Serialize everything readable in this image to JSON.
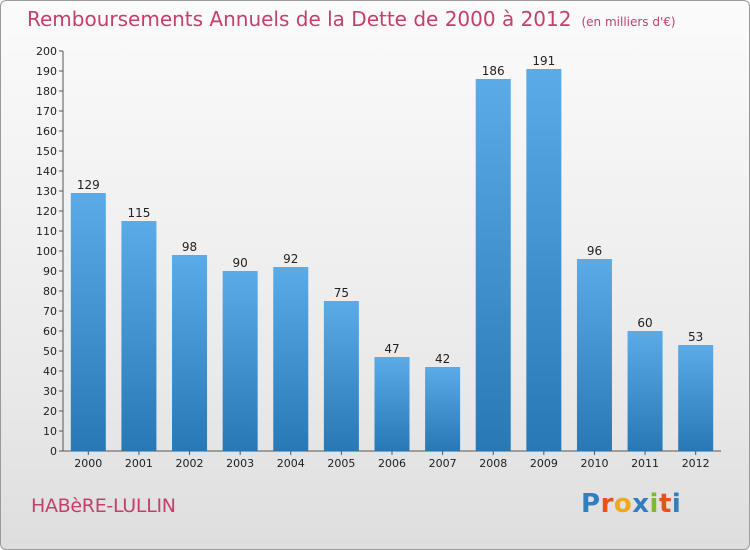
{
  "header": {
    "title": "Remboursements Annuels de la Dette de 2000 à 2012",
    "unit": "(en milliers d'€)"
  },
  "footer": {
    "commune": "HABèRE-LULLIN",
    "logo": "Proxiti",
    "logo_colors": [
      "#2f7fc1",
      "#e8501e",
      "#f2a81d",
      "#2f7fc1",
      "#7dbb2b",
      "#e8501e",
      "#2f7fc1"
    ]
  },
  "colors": {
    "bar_light": "#5aabe8",
    "bar_dark": "#2878b5",
    "text": "#222222",
    "grid_tick": "#555555",
    "title": "#c4406a"
  },
  "chart_data": {
    "type": "bar",
    "categories": [
      "2000",
      "2001",
      "2002",
      "2003",
      "2004",
      "2005",
      "2006",
      "2007",
      "2008",
      "2009",
      "2010",
      "2011",
      "2012"
    ],
    "values": [
      129,
      115,
      98,
      90,
      92,
      75,
      47,
      42,
      186,
      191,
      96,
      60,
      53
    ],
    "ylim": [
      0,
      200
    ],
    "ytick_step": 10,
    "yticks": [
      "0",
      "10",
      "20",
      "30",
      "40",
      "50",
      "60",
      "70",
      "80",
      "90",
      "100",
      "110",
      "120",
      "130",
      "140",
      "150",
      "160",
      "170",
      "180",
      "190",
      "200"
    ],
    "data_labels": [
      "129",
      "115",
      "98",
      "90",
      "92",
      "75",
      "47",
      "42",
      "186",
      "191",
      "96",
      "60",
      "53"
    ],
    "grid": false,
    "legend": "none"
  }
}
